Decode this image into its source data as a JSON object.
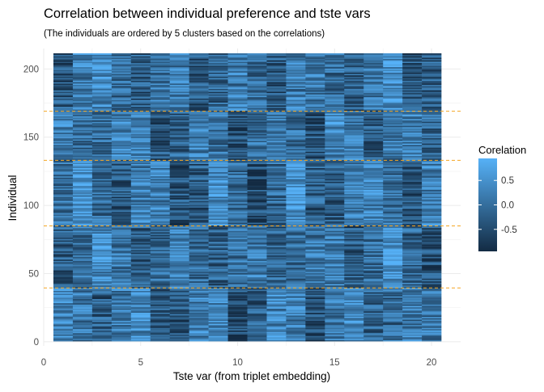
{
  "chart_data": {
    "type": "heatmap",
    "title": "Correlation between individual preference and tste vars",
    "subtitle": "(The individuals are ordered by 5 clusters based on the correlations)",
    "xlabel": "Tste var (from triplet embedding)",
    "ylabel": "Individual",
    "xlim": [
      0,
      21.5
    ],
    "ylim": [
      -3,
      215
    ],
    "x_ticks": [
      0,
      5,
      10,
      15,
      20
    ],
    "y_ticks": [
      0,
      50,
      100,
      150,
      200
    ],
    "x_tick_labels": [
      "0",
      "5",
      "10",
      "15",
      "20"
    ],
    "y_tick_labels": [
      "0",
      "50",
      "100",
      "150",
      "200"
    ],
    "n_columns": 20,
    "n_rows": 211,
    "cluster_boundaries": [
      39.5,
      85,
      133,
      169
    ],
    "boundary_color": "#F5A623",
    "grid": true,
    "legend": {
      "title": "Corelation",
      "position": "right",
      "ticks": [
        0.5,
        0.0,
        -0.5
      ],
      "tick_labels": [
        "0.5",
        "0.0",
        "-0.5"
      ],
      "range": [
        -0.95,
        0.95
      ],
      "color_low": "#132B43",
      "color_high": "#56B1F7"
    },
    "value_range": [
      -0.95,
      0.95
    ],
    "note": ""
  }
}
